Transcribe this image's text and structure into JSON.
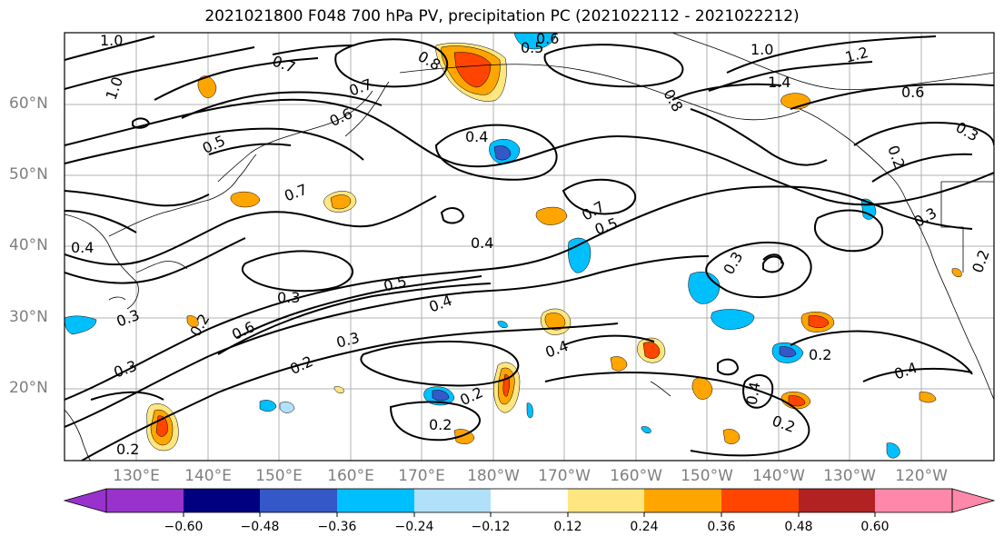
{
  "title": "2021021800 F048 700 hPa PV, precipitation PC (2021022112 - 2021022212)",
  "lat_labels": [
    "20°N",
    "30°N",
    "40°N",
    "50°N",
    "60°N"
  ],
  "lon_labels": [
    "130°E",
    "140°E",
    "150°E",
    "160°E",
    "170°E",
    "180°W",
    "170°W",
    "160°W",
    "150°W",
    "140°W",
    "130°W",
    "120°W"
  ],
  "colorbar": {
    "ticks": [
      "−0.60",
      "−0.48",
      "−0.36",
      "−0.24",
      "−0.12",
      "0.12",
      "0.24",
      "0.36",
      "0.48",
      "0.60"
    ],
    "colors": [
      "#9932cc",
      "#000080",
      "#3558c8",
      "#00bfff",
      "#b0e0fa",
      "#ffffff",
      "#ffe680",
      "#ffa500",
      "#ff4500",
      "#b22222",
      "#ff88aa"
    ]
  },
  "contour_labels": [
    "1.0",
    "1.0",
    "0.7",
    "0.8",
    "0.5",
    "0.7",
    "0.6",
    "0.5",
    "0.7",
    "0.4",
    "0.3",
    "0.3",
    "0.6",
    "0.5",
    "0.4",
    "0.7",
    "0.5",
    "0.4",
    "0.3",
    "0.2",
    "0.3",
    "0.2",
    "0.4",
    "0.2",
    "0.4",
    "0.2",
    "0.2",
    "1.0",
    "1.2",
    "1.4",
    "0.6",
    "0.3",
    "0.2",
    "0.3",
    "0.2",
    "0.3",
    "0.4",
    "0.2",
    "0.2",
    "0.6",
    "0.4",
    "0.8"
  ]
}
